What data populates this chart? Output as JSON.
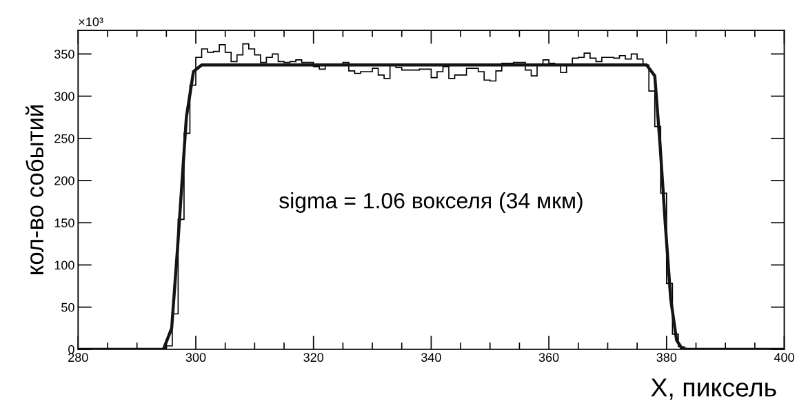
{
  "chart_data": {
    "type": "histogram",
    "xlabel": "X, пиксель",
    "ylabel": "кол-во событий",
    "annotations": [
      "×10³",
      "sigma = 1.06 вокселя (34 мкм)"
    ],
    "bins": [
      280,
      281,
      282,
      283,
      284,
      285,
      286,
      287,
      288,
      289,
      290,
      291,
      292,
      293,
      294,
      295,
      296,
      297,
      298,
      299,
      300,
      301,
      302,
      303,
      304,
      305,
      306,
      307,
      308,
      309,
      310,
      311,
      312,
      313,
      314,
      315,
      316,
      317,
      318,
      319,
      320,
      321,
      322,
      323,
      324,
      325,
      326,
      327,
      328,
      329,
      330,
      331,
      332,
      333,
      334,
      335,
      336,
      337,
      338,
      339,
      340,
      341,
      342,
      343,
      344,
      345,
      346,
      347,
      348,
      349,
      350,
      351,
      352,
      353,
      354,
      355,
      356,
      357,
      358,
      359,
      360,
      361,
      362,
      363,
      364,
      365,
      366,
      367,
      368,
      369,
      370,
      371,
      372,
      373,
      374,
      375,
      376,
      377,
      378,
      379,
      380,
      381,
      382,
      383,
      384,
      385,
      386,
      387,
      388,
      389,
      390,
      391,
      392,
      393,
      394,
      395,
      396,
      397,
      398,
      399,
      400
    ],
    "values": [
      0,
      0,
      0,
      0,
      0,
      0,
      0,
      0,
      0,
      0,
      0,
      0,
      0,
      0,
      0,
      4,
      42,
      154,
      256,
      313,
      346,
      356,
      352,
      353,
      361,
      352,
      341,
      349,
      362,
      356,
      349,
      340,
      346,
      350,
      341,
      340,
      341,
      343,
      340,
      340,
      335,
      332,
      338,
      337,
      337,
      340,
      330,
      327,
      329,
      329,
      333,
      325,
      321,
      337,
      334,
      331,
      331,
      331,
      332,
      332,
      322,
      329,
      335,
      321,
      325,
      325,
      333,
      333,
      329,
      319,
      318,
      330,
      339,
      339,
      340,
      340,
      331,
      324,
      337,
      343,
      339,
      337,
      328,
      337,
      345,
      346,
      351,
      345,
      341,
      346,
      346,
      345,
      348,
      344,
      350,
      344,
      337,
      306,
      264,
      185,
      78,
      18,
      3,
      0,
      0,
      0,
      0,
      0,
      0,
      0,
      0,
      0,
      0,
      0,
      0,
      0,
      0,
      0,
      0,
      0
    ],
    "color": "#000000",
    "series": [
      {
        "type": "line",
        "color": "#141414",
        "x": [
          280,
          294.5,
          295.9,
          296.9,
          298.4,
          299.6,
          301,
          376.6,
          378,
          378.9,
          379.8,
          380.7,
          381.7,
          382.6,
          383.5,
          400
        ],
        "values": [
          0,
          0,
          25,
          120,
          275,
          329,
          337,
          337,
          324,
          242,
          147,
          60,
          11,
          1,
          0,
          0
        ]
      }
    ],
    "xlim": [
      280,
      400
    ],
    "xticks": [
      280,
      {
        "value": 285,
        "label": null
      },
      {
        "value": 290,
        "label": null
      },
      {
        "value": 295,
        "label": null
      },
      300,
      {
        "value": 305,
        "label": null
      },
      {
        "value": 310,
        "label": null
      },
      {
        "value": 315,
        "label": null
      },
      320,
      {
        "value": 325,
        "label": null
      },
      {
        "value": 330,
        "label": null
      },
      {
        "value": 335,
        "label": null
      },
      340,
      {
        "value": 345,
        "label": null
      },
      {
        "value": 350,
        "label": null
      },
      {
        "value": 355,
        "label": null
      },
      360,
      {
        "value": 365,
        "label": null
      },
      {
        "value": 370,
        "label": null
      },
      {
        "value": 375,
        "label": null
      },
      380,
      {
        "value": 385,
        "label": null
      },
      {
        "value": 390,
        "label": null
      },
      {
        "value": 395,
        "label": null
      },
      400
    ],
    "ylim": [
      0,
      378
    ],
    "yticks": [
      0,
      50,
      100,
      150,
      200,
      250,
      300,
      350
    ],
    "grid": false,
    "legend": false
  }
}
